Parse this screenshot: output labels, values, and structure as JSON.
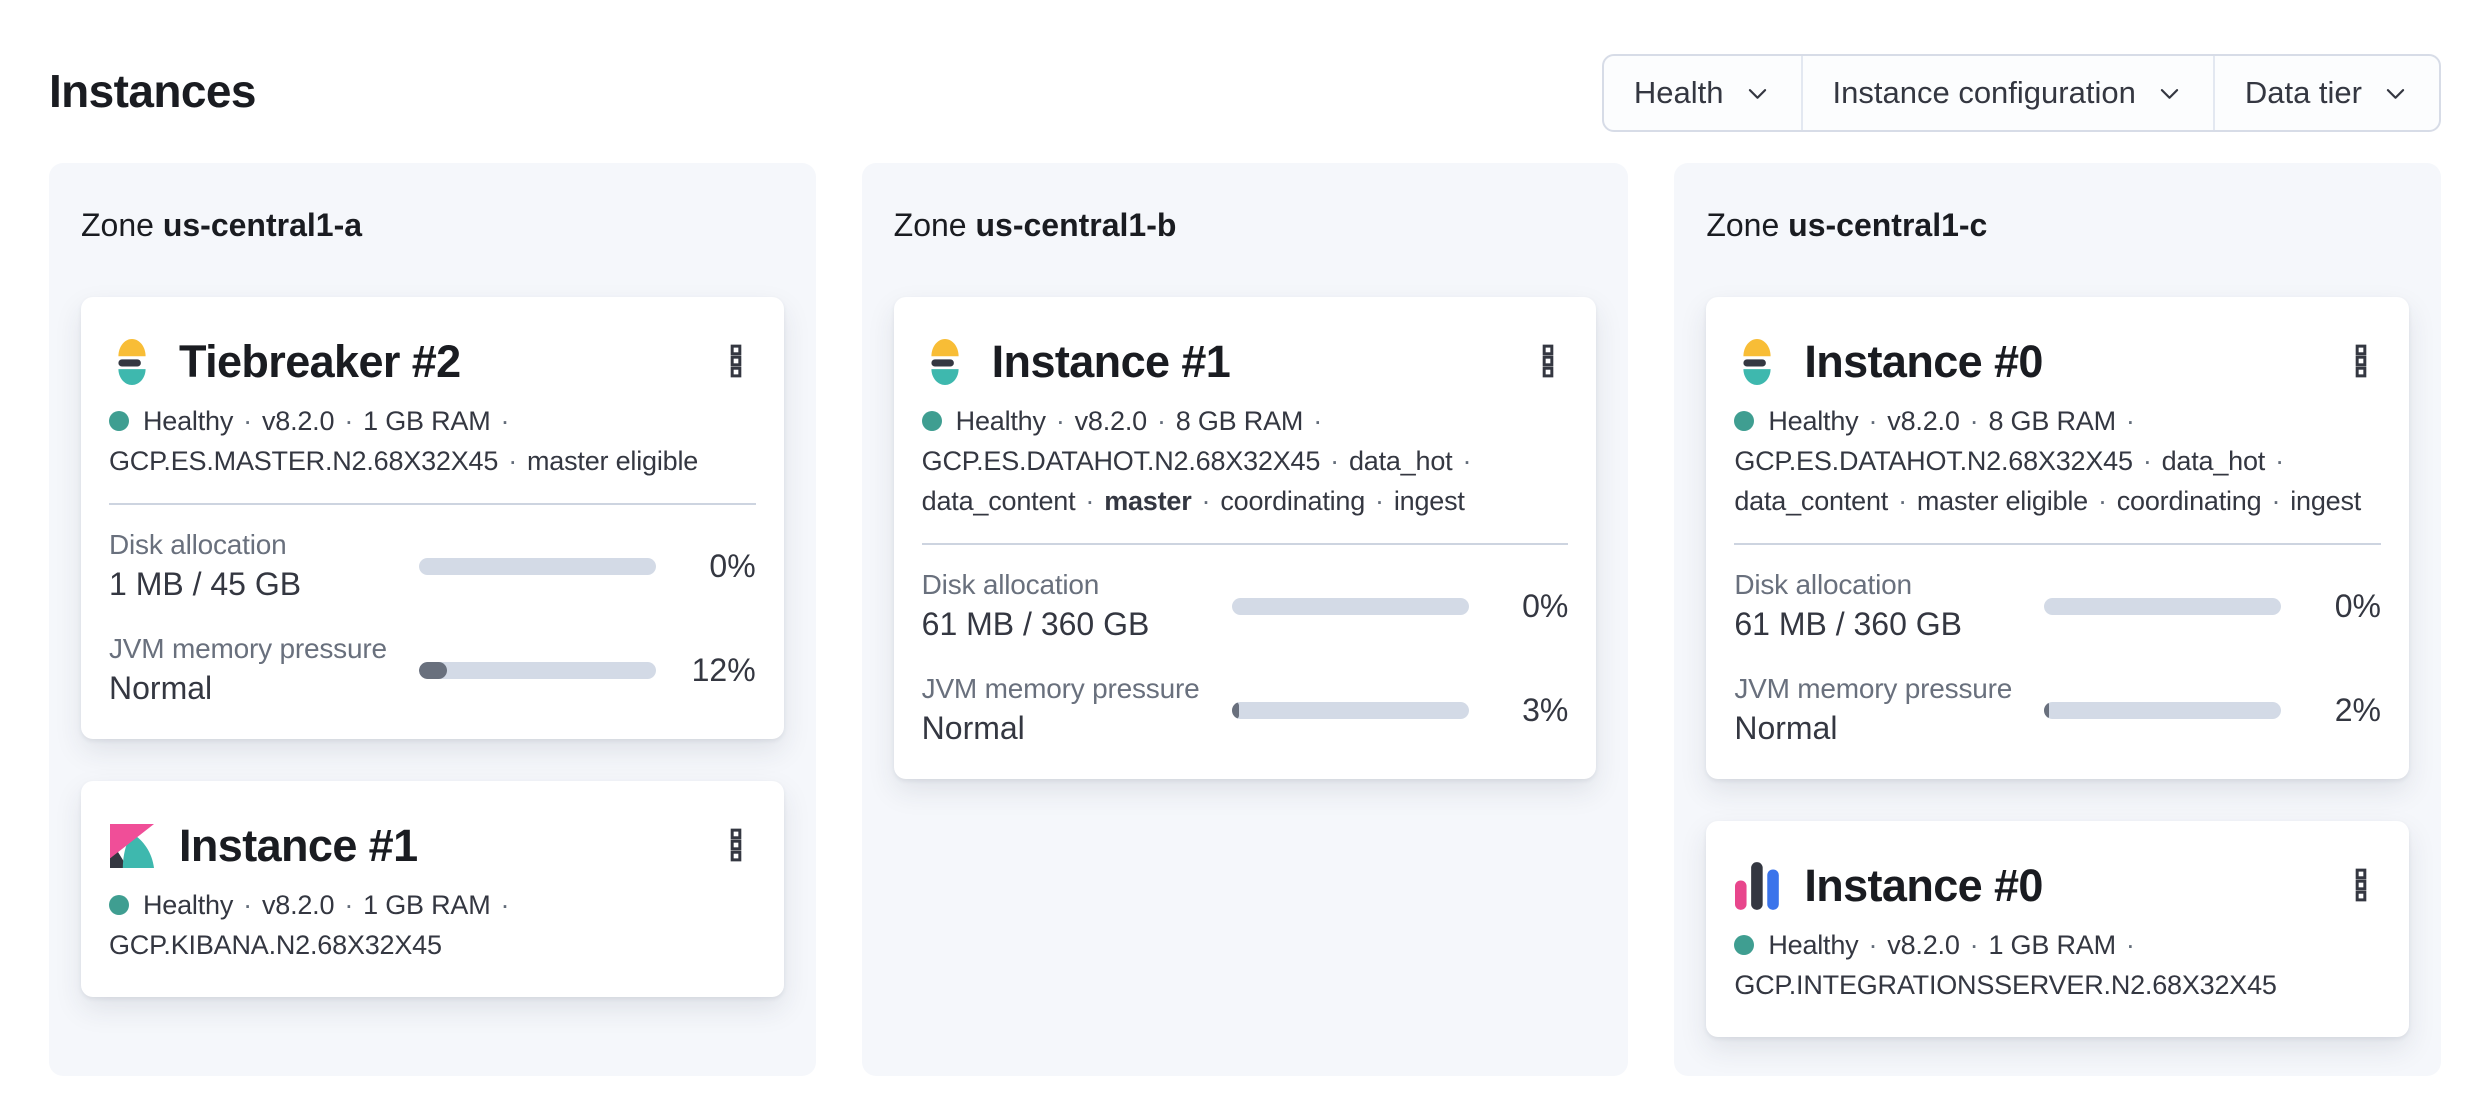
{
  "page": {
    "title": "Instances"
  },
  "filters": [
    {
      "label": "Health"
    },
    {
      "label": "Instance configuration"
    },
    {
      "label": "Data tier"
    }
  ],
  "colors": {
    "health_dot": "#3f9e91",
    "bar_track": "#d3dae6",
    "bar_fill": "#69707d",
    "panel_bg": "#f5f7fb",
    "divider": "#cdd4e0",
    "text_dark": "#1a1c21",
    "text_body": "#343741",
    "text_subdued": "#69707d",
    "logo_yellow": "#f8bd36",
    "logo_teal": "#3eb8ae",
    "logo_dark": "#343741",
    "logo_pink": "#f04e98",
    "logo_pink_deep": "#e8468c",
    "logo_blue": "#3b74eb"
  },
  "zones": [
    {
      "label": "Zone",
      "name": "us-central1-a",
      "cards": [
        {
          "logo": "elasticsearch",
          "title": "Tiebreaker #2",
          "meta_lines": [
            {
              "health_dot": true,
              "trail": true,
              "items": [
                {
                  "text": "Healthy"
                },
                {
                  "text": "v8.2.0"
                },
                {
                  "text": "1 GB RAM"
                }
              ]
            },
            {
              "health_dot": false,
              "trail": false,
              "items": [
                {
                  "text": "GCP.ES.MASTER.N2.68X32X45"
                },
                {
                  "text": "master eligible"
                }
              ]
            }
          ],
          "metrics": [
            {
              "label": "Disk allocation",
              "value": "1 MB / 45 GB",
              "percent": "0%",
              "fill": 0
            },
            {
              "label": "JVM memory pressure",
              "value": "Normal",
              "percent": "12%",
              "fill": 12
            }
          ]
        },
        {
          "logo": "kibana",
          "title": "Instance #1",
          "meta_lines": [
            {
              "health_dot": true,
              "trail": true,
              "items": [
                {
                  "text": "Healthy"
                },
                {
                  "text": "v8.2.0"
                },
                {
                  "text": "1 GB RAM"
                }
              ]
            },
            {
              "health_dot": false,
              "trail": false,
              "items": [
                {
                  "text": "GCP.KIBANA.N2.68X32X45"
                }
              ]
            }
          ],
          "metrics": []
        }
      ]
    },
    {
      "label": "Zone",
      "name": "us-central1-b",
      "cards": [
        {
          "logo": "elasticsearch",
          "title": "Instance #1",
          "meta_lines": [
            {
              "health_dot": true,
              "trail": true,
              "items": [
                {
                  "text": "Healthy"
                },
                {
                  "text": "v8.2.0"
                },
                {
                  "text": "8 GB RAM"
                }
              ]
            },
            {
              "health_dot": false,
              "trail": true,
              "items": [
                {
                  "text": "GCP.ES.DATAHOT.N2.68X32X45"
                },
                {
                  "text": "data_hot"
                }
              ]
            },
            {
              "health_dot": false,
              "trail": false,
              "items": [
                {
                  "text": "data_content"
                },
                {
                  "text": "master",
                  "bold": true
                },
                {
                  "text": "coordinating"
                },
                {
                  "text": "ingest"
                }
              ]
            }
          ],
          "metrics": [
            {
              "label": "Disk allocation",
              "value": "61 MB / 360 GB",
              "percent": "0%",
              "fill": 0
            },
            {
              "label": "JVM memory pressure",
              "value": "Normal",
              "percent": "3%",
              "fill": 3
            }
          ]
        }
      ]
    },
    {
      "label": "Zone",
      "name": "us-central1-c",
      "cards": [
        {
          "logo": "elasticsearch",
          "title": "Instance #0",
          "meta_lines": [
            {
              "health_dot": true,
              "trail": true,
              "items": [
                {
                  "text": "Healthy"
                },
                {
                  "text": "v8.2.0"
                },
                {
                  "text": "8 GB RAM"
                }
              ]
            },
            {
              "health_dot": false,
              "trail": true,
              "items": [
                {
                  "text": "GCP.ES.DATAHOT.N2.68X32X45"
                },
                {
                  "text": "data_hot"
                }
              ]
            },
            {
              "health_dot": false,
              "trail": false,
              "items": [
                {
                  "text": "data_content"
                },
                {
                  "text": "master eligible"
                },
                {
                  "text": "coordinating"
                },
                {
                  "text": "ingest"
                }
              ]
            }
          ],
          "metrics": [
            {
              "label": "Disk allocation",
              "value": "61 MB / 360 GB",
              "percent": "0%",
              "fill": 0
            },
            {
              "label": "JVM memory pressure",
              "value": "Normal",
              "percent": "2%",
              "fill": 2
            }
          ]
        },
        {
          "logo": "integrations_server",
          "title": "Instance #0",
          "meta_lines": [
            {
              "health_dot": true,
              "trail": true,
              "items": [
                {
                  "text": "Healthy"
                },
                {
                  "text": "v8.2.0"
                },
                {
                  "text": "1 GB RAM"
                }
              ]
            },
            {
              "health_dot": false,
              "trail": false,
              "items": [
                {
                  "text": "GCP.INTEGRATIONSSERVER.N2.68X32X45"
                }
              ]
            }
          ],
          "metrics": []
        }
      ]
    }
  ]
}
